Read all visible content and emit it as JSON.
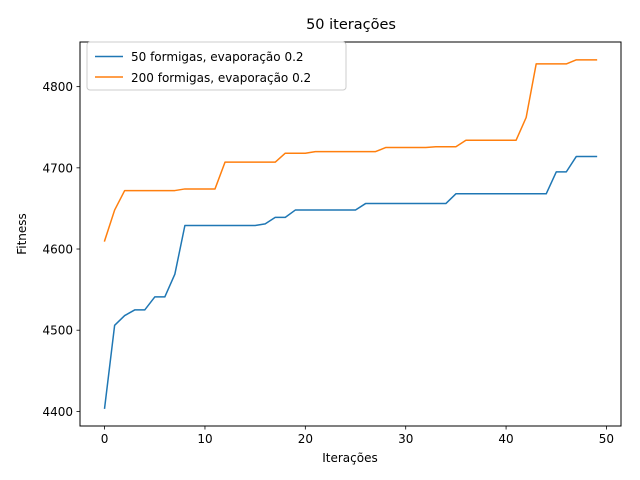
{
  "chart_data": {
    "type": "line",
    "title": "50 iterações",
    "xlabel": "Iterações",
    "ylabel": "Fitness",
    "xlim": [
      -2.45,
      51.45
    ],
    "ylim": [
      4382,
      4855
    ],
    "xticks": [
      0,
      10,
      20,
      30,
      40,
      50
    ],
    "yticks": [
      4400,
      4500,
      4600,
      4700,
      4800
    ],
    "grid": false,
    "legend_position": "upper left",
    "x": [
      0,
      1,
      2,
      3,
      4,
      5,
      6,
      7,
      8,
      9,
      10,
      11,
      12,
      13,
      14,
      15,
      16,
      17,
      18,
      19,
      20,
      21,
      22,
      23,
      24,
      25,
      26,
      27,
      28,
      29,
      30,
      31,
      32,
      33,
      34,
      35,
      36,
      37,
      38,
      39,
      40,
      41,
      42,
      43,
      44,
      45,
      46,
      47,
      48,
      49
    ],
    "series": [
      {
        "name": "50 formigas, evaporação 0.2",
        "color": "#1f77b4",
        "values": [
          4404,
          4506,
          4518,
          4525,
          4525,
          4541,
          4541,
          4569,
          4629,
          4629,
          4629,
          4629,
          4629,
          4629,
          4629,
          4629,
          4631,
          4639,
          4639,
          4648,
          4648,
          4648,
          4648,
          4648,
          4648,
          4648,
          4656,
          4656,
          4656,
          4656,
          4656,
          4656,
          4656,
          4656,
          4656,
          4668,
          4668,
          4668,
          4668,
          4668,
          4668,
          4668,
          4668,
          4668,
          4668,
          4695,
          4695,
          4714,
          4714,
          4714
        ]
      },
      {
        "name": "200 formigas, evaporação 0.2",
        "color": "#ff7f0e",
        "values": [
          4610,
          4648,
          4672,
          4672,
          4672,
          4672,
          4672,
          4672,
          4674,
          4674,
          4674,
          4674,
          4707,
          4707,
          4707,
          4707,
          4707,
          4707,
          4718,
          4718,
          4718,
          4720,
          4720,
          4720,
          4720,
          4720,
          4720,
          4720,
          4725,
          4725,
          4725,
          4725,
          4725,
          4726,
          4726,
          4726,
          4734,
          4734,
          4734,
          4734,
          4734,
          4734,
          4762,
          4828,
          4828,
          4828,
          4828,
          4833,
          4833,
          4833
        ]
      }
    ]
  }
}
